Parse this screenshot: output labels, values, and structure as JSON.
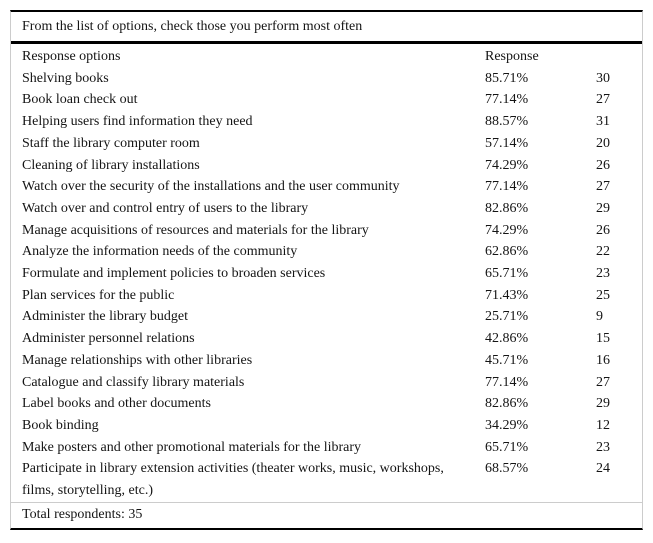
{
  "table": {
    "title": "From the list of options, check those you perform most often",
    "header": {
      "options": "Response options",
      "response": "Response"
    },
    "rows": [
      {
        "label": "Shelving books",
        "pct": "85.71%",
        "count": "30"
      },
      {
        "label": "Book loan check out",
        "pct": "77.14%",
        "count": "27"
      },
      {
        "label": "Helping users find information they need",
        "pct": "88.57%",
        "count": "31"
      },
      {
        "label": "Staff the library computer room",
        "pct": "57.14%",
        "count": "20"
      },
      {
        "label": "Cleaning of library installations",
        "pct": "74.29%",
        "count": "26"
      },
      {
        "label": "Watch over the security of the installations and the user community",
        "pct": "77.14%",
        "count": "27"
      },
      {
        "label": "Watch over and control entry of users to the library",
        "pct": "82.86%",
        "count": "29"
      },
      {
        "label": "Manage acquisitions of resources and materials for the library",
        "pct": "74.29%",
        "count": "26"
      },
      {
        "label": "Analyze the information needs of the community",
        "pct": "62.86%",
        "count": "22"
      },
      {
        "label": "Formulate and implement policies to broaden services",
        "pct": "65.71%",
        "count": "23"
      },
      {
        "label": "Plan services for the public",
        "pct": "71.43%",
        "count": "25"
      },
      {
        "label": "Administer the library budget",
        "pct": "25.71%",
        "count": "9"
      },
      {
        "label": "Administer personnel relations",
        "pct": "42.86%",
        "count": "15"
      },
      {
        "label": "Manage relationships with other libraries",
        "pct": "45.71%",
        "count": "16"
      },
      {
        "label": "Catalogue and classify library materials",
        "pct": "77.14%",
        "count": "27"
      },
      {
        "label": "Label books and other documents",
        "pct": "82.86%",
        "count": "29"
      },
      {
        "label": "Book binding",
        "pct": "34.29%",
        "count": "12"
      },
      {
        "label": "Make posters and other promotional materials for the library",
        "pct": "65.71%",
        "count": "23"
      },
      {
        "label": "Participate in library extension activities (theater works, music, workshops, films, storytelling, etc.)",
        "pct": "68.57%",
        "count": "24"
      }
    ],
    "total": "Total respondents: 35"
  },
  "colors": {
    "rule_heavy": "#000000",
    "rule_light": "#cccccc",
    "text": "#141414",
    "background": "#ffffff"
  }
}
